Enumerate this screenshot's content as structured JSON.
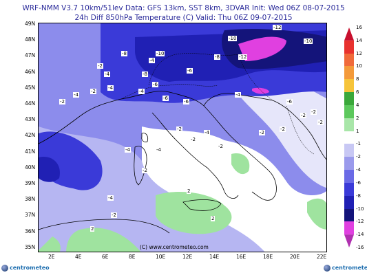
{
  "title_line1": "WRF-NMM V3.7 10km/51lev   Data: GFS 13km, SST 8km, 3DVAR   Init: Wed 06Z 08-07-2015",
  "title_line2": "24h Diff 850hPa Temperature (C)   Valid: Thu 06Z 09-07-2015",
  "copyright": "(C) www.centrometeo.com",
  "logo_text": "centrometeo",
  "lat_labels": [
    "49N",
    "48N",
    "47N",
    "46N",
    "45N",
    "44N",
    "43N",
    "42N",
    "41N",
    "40N",
    "39N",
    "38N",
    "37N",
    "36N",
    "35N"
  ],
  "lon_labels": [
    "2E",
    "4E",
    "6E",
    "8E",
    "10E",
    "12E",
    "14E",
    "16E",
    "18E",
    "20E",
    "22E"
  ],
  "colorbar": {
    "labels": [
      "16",
      "14",
      "12",
      "10",
      "8",
      "6",
      "4",
      "2",
      "1",
      "-1",
      "-2",
      "-4",
      "-6",
      "-8",
      "-10",
      "-12",
      "-14",
      "-16"
    ],
    "colors": [
      "#c8102e",
      "#e8322e",
      "#f06a3a",
      "#f49a3a",
      "#f6c43a",
      "#3aa83a",
      "#5cc85c",
      "#a8e6a8",
      "#ffffff",
      "#c8c8f4",
      "#9a9aec",
      "#6a6ae6",
      "#3a3ad8",
      "#2020b4",
      "#14147a",
      "#e040e0",
      "#b030b0"
    ]
  },
  "contour_labels": [
    "-12",
    "-10",
    "-10",
    "-8",
    "-12",
    "-6",
    "-4",
    "-8",
    "-10",
    "-8",
    "-2",
    "-4",
    "-6",
    "-4",
    "-2",
    "-4",
    "-4",
    "-6",
    "-6",
    "-2",
    "-4",
    "-6",
    "-2",
    "-4",
    "-4",
    "-2",
    "-2",
    "-4",
    "-2",
    "-2",
    "-2",
    "2",
    "2",
    "-2",
    "-2",
    "2",
    "-2",
    "-4",
    "-2"
  ]
}
